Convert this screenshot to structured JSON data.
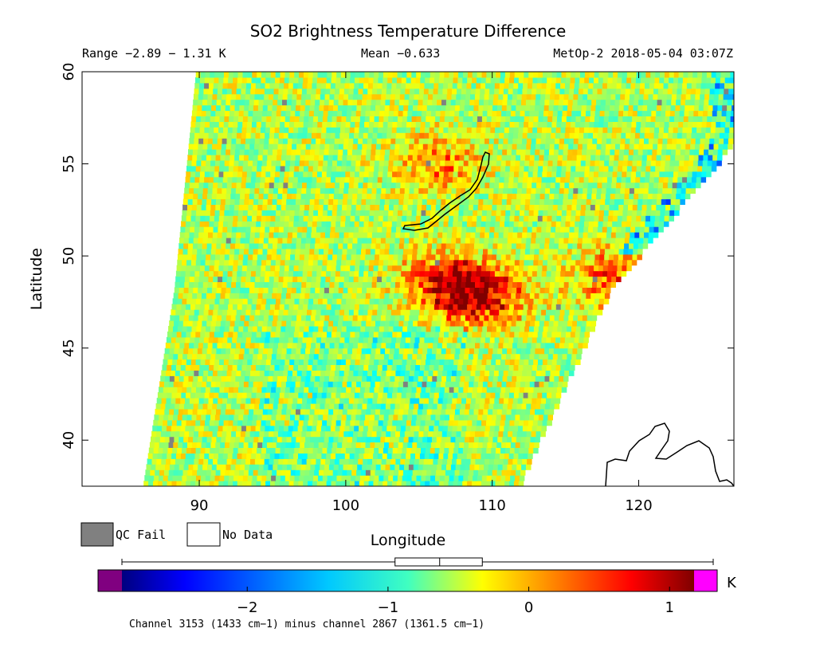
{
  "chart_data": {
    "type": "heatmap",
    "title": "SO2 Brightness Temperature Difference",
    "range_text": "Range −2.89 − 1.31 K",
    "mean_text": "Mean −0.633",
    "instrument_text": "MetOp-2 2018-05-04 03:07Z",
    "xlabel": "Longitude",
    "ylabel": "Latitude",
    "xlim": [
      82,
      126.5
    ],
    "ylim": [
      37.5,
      60
    ],
    "x_ticks": [
      90,
      100,
      110,
      120
    ],
    "y_ticks": [
      40,
      45,
      50,
      55,
      60
    ],
    "swath_edge": {
      "west": [
        [
          86.2,
          37.5
        ],
        [
          88.3,
          48
        ],
        [
          89.8,
          60
        ]
      ],
      "east": [
        [
          111.8,
          37.5
        ],
        [
          118,
          48
        ],
        [
          126.5,
          56
        ]
      ]
    },
    "hotspots": [
      {
        "lon": 109.0,
        "lat": 47.8,
        "value": 1.2
      },
      {
        "lon": 106.5,
        "lat": 48.5,
        "value": 0.6
      },
      {
        "lon": 118.5,
        "lat": 48.6,
        "value": 0.7
      },
      {
        "lon": 106.0,
        "lat": 55.0,
        "value": 0.3
      }
    ],
    "colorbar": {
      "min": -2.89,
      "max": 1.31,
      "ticks": [
        "−2",
        "−1",
        "0",
        "1"
      ],
      "tick_values": [
        -2,
        -1,
        0,
        1
      ],
      "unit": "K",
      "boxplot": {
        "whisker_low": -2.89,
        "q1": -0.95,
        "median": -0.633,
        "q3": -0.33,
        "whisker_high": 1.31
      }
    },
    "legend": [
      {
        "label": "QC Fail",
        "color": "#808080"
      },
      {
        "label": "No Data",
        "color": "#ffffff"
      }
    ],
    "footer": "Channel 3153 (1433 cm−1) minus channel 2867 (1361.5 cm−1)"
  }
}
